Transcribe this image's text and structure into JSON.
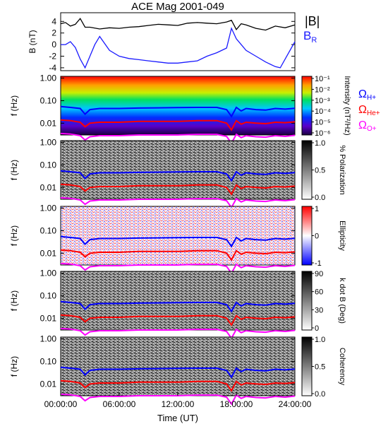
{
  "title": "ACE Mag 2001-049",
  "xlabel": "Time (UT)",
  "x_ticks": [
    "00:00:00",
    "06:00:00",
    "12:00:00",
    "18:00:00",
    "24:00:00"
  ],
  "colors": {
    "b_total": "#000000",
    "b_r": "#1a1aff",
    "omega_h": "#0000ff",
    "omega_he": "#ff0000",
    "omega_o": "#ff00ff"
  },
  "chart_data": [
    {
      "type": "line",
      "panel": "magnetic-field",
      "ylabel": "B (nT)",
      "ylim": [
        -4.5,
        5.5
      ],
      "yticks": [
        "4",
        "2",
        "0",
        "-2",
        "-4"
      ],
      "xlim": [
        0,
        24
      ],
      "legend": [
        "|B|",
        "B"
      ],
      "legend_subscripts": [
        "",
        "R"
      ],
      "series": [
        {
          "name": "|B|",
          "x": [
            0,
            0.5,
            1,
            1.5,
            2,
            2.5,
            3,
            4,
            5,
            6,
            7,
            8,
            9,
            10,
            11,
            12,
            13,
            14,
            15,
            16,
            17,
            17.5,
            18,
            18.5,
            19,
            20,
            21,
            22,
            23,
            24
          ],
          "y": [
            3.6,
            3.8,
            3.2,
            3.5,
            4.5,
            3.0,
            3.0,
            2.7,
            2.9,
            2.8,
            3.0,
            3.1,
            3.3,
            3.5,
            3.4,
            3.3,
            3.7,
            3.8,
            3.7,
            3.6,
            3.9,
            4.2,
            2.6,
            3.6,
            3.4,
            2.8,
            2.5,
            3.2,
            2.9,
            3.4
          ]
        },
        {
          "name": "B",
          "x": [
            0,
            0.5,
            1,
            1.5,
            2,
            2.5,
            3,
            3.5,
            4,
            5,
            6,
            7,
            8,
            9,
            10,
            11,
            12,
            13,
            14,
            15,
            16,
            17,
            17.5,
            18,
            18.5,
            19,
            20,
            21,
            22,
            22.5,
            23,
            24
          ],
          "y": [
            0.0,
            0.0,
            0.5,
            -0.5,
            -2.5,
            -4.0,
            -2.0,
            0.0,
            1.4,
            -1.0,
            -2.0,
            -2.4,
            -2.6,
            -2.8,
            -3.0,
            -3.2,
            -3.2,
            -3.0,
            -2.8,
            -2.0,
            -1.4,
            -0.6,
            2.8,
            1.0,
            0.0,
            -1.0,
            -2.0,
            -3.0,
            -3.8,
            -4.0,
            -2.5,
            0.5
          ]
        }
      ]
    },
    {
      "type": "heatmap",
      "panel": "power-spectrum",
      "ylabel": "f (Hz)",
      "yticks": [
        "1.00",
        "0.10",
        "0.01"
      ],
      "colorbar": {
        "label": "Intensity (nT²/Hz)",
        "ticks": [
          "10⁻¹",
          "10⁻²",
          "10⁻³",
          "10⁻⁴",
          "10⁻⁵",
          "10⁻⁶"
        ]
      },
      "legend": [
        "Ω",
        "Ω",
        "Ω"
      ],
      "legend_subscripts": [
        "H+",
        "He+",
        "O+"
      ]
    },
    {
      "type": "heatmap",
      "panel": "polarization",
      "ylabel": "f (Hz)",
      "yticks": [
        "1.00",
        "0.10",
        "0.01"
      ],
      "colorbar": {
        "label": "% Polarization",
        "ticks": [
          "1.0",
          "0.5",
          "0.0"
        ]
      }
    },
    {
      "type": "heatmap",
      "panel": "ellipticity",
      "ylabel": "f (Hz)",
      "yticks": [
        "1.00",
        "0.10",
        "0.01"
      ],
      "colorbar": {
        "label": "Ellipticity",
        "ticks": [
          "1",
          "0",
          "-1"
        ]
      }
    },
    {
      "type": "heatmap",
      "panel": "k-dot-b",
      "ylabel": "f (Hz)",
      "yticks": [
        "1.00",
        "0.10",
        "0.01"
      ],
      "colorbar": {
        "label": "k dot B (Deg)",
        "ticks": [
          "90",
          "60",
          "30",
          "0"
        ]
      }
    },
    {
      "type": "heatmap",
      "panel": "coherency",
      "ylabel": "f (Hz)",
      "yticks": [
        "1.00",
        "0.10",
        "0.01"
      ],
      "colorbar": {
        "label": "Coherency",
        "ticks": [
          "1.0",
          "0.5",
          "0.0"
        ]
      }
    }
  ],
  "gyrofrequency_lines": {
    "x": [
      0,
      1,
      2,
      2.5,
      3,
      4,
      6,
      8,
      10,
      12,
      14,
      16,
      17,
      17.5,
      18,
      18.5,
      19,
      20,
      21,
      22,
      23,
      24
    ],
    "omega_h_hz": [
      0.055,
      0.05,
      0.045,
      0.025,
      0.04,
      0.045,
      0.045,
      0.047,
      0.048,
      0.049,
      0.05,
      0.05,
      0.04,
      0.02,
      0.05,
      0.035,
      0.045,
      0.04,
      0.038,
      0.045,
      0.042,
      0.046
    ],
    "omega_he_hz": [
      0.014,
      0.013,
      0.011,
      0.007,
      0.01,
      0.011,
      0.011,
      0.012,
      0.012,
      0.012,
      0.013,
      0.013,
      0.01,
      0.005,
      0.013,
      0.009,
      0.011,
      0.01,
      0.0095,
      0.011,
      0.0105,
      0.0115
    ],
    "omega_o_hz": [
      0.0035,
      0.0033,
      0.0028,
      0.0018,
      0.0025,
      0.0028,
      0.0028,
      0.003,
      0.003,
      0.003,
      0.0032,
      0.0032,
      0.0026,
      0.0013,
      0.0032,
      0.0023,
      0.0028,
      0.0025,
      0.0024,
      0.0028,
      0.0026,
      0.0029
    ]
  }
}
